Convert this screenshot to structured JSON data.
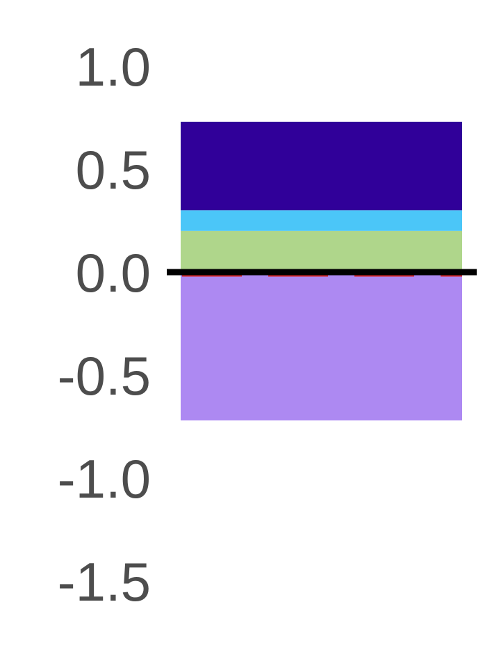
{
  "chart_data": {
    "type": "bar",
    "stacked": true,
    "categories": [
      ""
    ],
    "title": "",
    "xlabel": "",
    "ylabel": "",
    "ylim": [
      -1.6,
      1.2
    ],
    "yticks": [
      {
        "value": 1.0,
        "label": "1.0"
      },
      {
        "value": 0.5,
        "label": "0.5"
      },
      {
        "value": 0.0,
        "label": "0.0"
      },
      {
        "value": -0.5,
        "label": "-0.5"
      },
      {
        "value": -1.0,
        "label": "-1.0"
      },
      {
        "value": -1.5,
        "label": "-1.5"
      }
    ],
    "grid": false,
    "segments": [
      {
        "from": 0.0,
        "to": -0.72,
        "color": "#ad89f2"
      },
      {
        "from": 0.0,
        "to": 0.01,
        "color": "#1a9a78"
      },
      {
        "from": 0.01,
        "to": 0.2,
        "color": "#afd68b"
      },
      {
        "from": 0.2,
        "to": 0.3,
        "color": "#4bc6f8"
      },
      {
        "from": 0.3,
        "to": 0.73,
        "color": "#300099"
      }
    ],
    "reference_lines": [
      {
        "value": 0.0,
        "color": "#000000",
        "style": "solid"
      },
      {
        "value": -0.015,
        "color": "#d62728",
        "style": "dashed"
      }
    ]
  }
}
